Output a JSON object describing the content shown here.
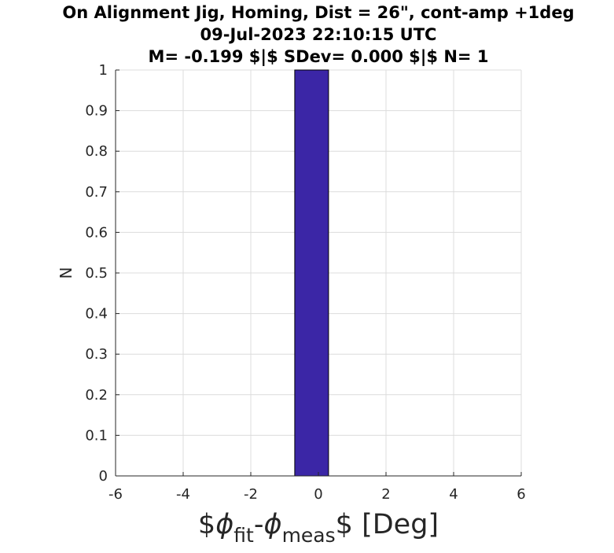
{
  "chart_data": {
    "type": "bar",
    "title": [
      "On Alignment Jig, Homing, Dist = 26\", cont-amp +1deg",
      "09-Jul-2023 22:10:15 UTC",
      "M= -0.199 $|$ SDev= 0.000 $|$ N= 1"
    ],
    "xlabel": "$\\phi_{fit}-\\phi_{meas}$ [Deg]",
    "xlabel_parts": {
      "prefix": "$",
      "phi1": "ϕ",
      "sub1": "fit",
      "mid": "-",
      "phi2": "ϕ",
      "sub2": "meas",
      "suffix": "$ [Deg]"
    },
    "ylabel": "N",
    "xlim": [
      -6,
      6
    ],
    "ylim": [
      0,
      1
    ],
    "xticks": [
      -6,
      -4,
      -2,
      0,
      2,
      4,
      6
    ],
    "xtick_labels": [
      "-6",
      "-4",
      "-2",
      "0",
      "2",
      "4",
      "6"
    ],
    "yticks": [
      0,
      0.1,
      0.2,
      0.3,
      0.4,
      0.5,
      0.6,
      0.7,
      0.8,
      0.9,
      1
    ],
    "ytick_labels": [
      "0",
      "0.1",
      "0.2",
      "0.3",
      "0.4",
      "0.5",
      "0.6",
      "0.7",
      "0.8",
      "0.9",
      "1"
    ],
    "grid": true,
    "bins": [
      {
        "x_start": -0.7,
        "x_end": 0.3,
        "count": 1
      }
    ],
    "bar_color": "#3b26a6",
    "bar_edge_color": "#000000"
  }
}
